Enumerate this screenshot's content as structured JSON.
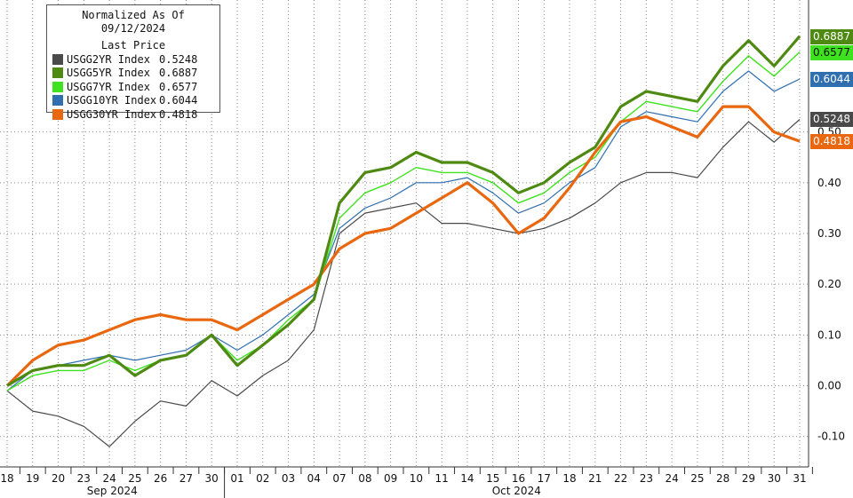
{
  "chart_data": {
    "type": "line",
    "legend": {
      "title": "Normalized As Of 09/12/2024",
      "subtitle": "Last Price",
      "placement": "top-left"
    },
    "ylim": [
      -0.16,
      0.76
    ],
    "yticks": [
      "-0.10",
      "0.00",
      "0.10",
      "0.20",
      "0.30",
      "0.40",
      "0.50"
    ],
    "ytick_values": [
      -0.1,
      0.0,
      0.1,
      0.2,
      0.3,
      0.4,
      0.5
    ],
    "x_day_labels": [
      "18",
      "19",
      "20",
      "23",
      "24",
      "25",
      "26",
      "27",
      "30",
      "01",
      "02",
      "03",
      "04",
      "07",
      "08",
      "09",
      "10",
      "11",
      "14",
      "15",
      "16",
      "17",
      "18",
      "21",
      "22",
      "23",
      "24",
      "25",
      "28",
      "29",
      "30",
      "31"
    ],
    "months": [
      {
        "label": "Sep 2024",
        "first_index": 0,
        "last_index": 8
      },
      {
        "label": "Oct 2024",
        "first_index": 9,
        "last_index": 31
      }
    ],
    "grid": true,
    "series": [
      {
        "name": "USGG2YR Index",
        "last": "0.5248",
        "last_value": 0.5248,
        "color": "#4a4a4a",
        "values": [
          -0.01,
          -0.05,
          -0.06,
          -0.08,
          -0.12,
          -0.07,
          -0.03,
          -0.04,
          0.01,
          -0.02,
          0.02,
          0.05,
          0.11,
          0.3,
          0.34,
          0.35,
          0.36,
          0.32,
          0.32,
          0.31,
          0.3,
          0.31,
          0.33,
          0.36,
          0.4,
          0.42,
          0.42,
          0.41,
          0.47,
          0.52,
          0.48,
          0.5248
        ]
      },
      {
        "name": "USGG5YR Index",
        "last": "0.6887",
        "last_value": 0.6887,
        "color": "#4e8a12",
        "values": [
          0.0,
          0.03,
          0.04,
          0.04,
          0.06,
          0.02,
          0.05,
          0.06,
          0.1,
          0.04,
          0.08,
          0.12,
          0.17,
          0.36,
          0.42,
          0.43,
          0.46,
          0.44,
          0.44,
          0.42,
          0.38,
          0.4,
          0.44,
          0.47,
          0.55,
          0.58,
          0.57,
          0.56,
          0.63,
          0.68,
          0.63,
          0.6887
        ]
      },
      {
        "name": "USGG7YR Index",
        "last": "0.6577",
        "last_value": 0.6577,
        "color": "#3ee21e",
        "values": [
          -0.01,
          0.02,
          0.03,
          0.03,
          0.05,
          0.03,
          0.05,
          0.06,
          0.1,
          0.05,
          0.08,
          0.13,
          0.17,
          0.33,
          0.38,
          0.4,
          0.43,
          0.42,
          0.42,
          0.4,
          0.36,
          0.38,
          0.42,
          0.45,
          0.52,
          0.56,
          0.55,
          0.54,
          0.6,
          0.65,
          0.61,
          0.6577
        ]
      },
      {
        "name": "USGG10YR Index",
        "last": "0.6044",
        "last_value": 0.6044,
        "color": "#2f6fb0",
        "values": [
          -0.01,
          0.03,
          0.04,
          0.05,
          0.06,
          0.05,
          0.06,
          0.07,
          0.1,
          0.07,
          0.1,
          0.14,
          0.18,
          0.31,
          0.35,
          0.37,
          0.4,
          0.4,
          0.41,
          0.38,
          0.34,
          0.36,
          0.4,
          0.43,
          0.51,
          0.54,
          0.53,
          0.52,
          0.58,
          0.62,
          0.58,
          0.6044
        ]
      },
      {
        "name": "USGG30YR Index",
        "last": "0.4818",
        "last_value": 0.4818,
        "color": "#e8670f",
        "values": [
          0.0,
          0.05,
          0.08,
          0.09,
          0.11,
          0.13,
          0.14,
          0.13,
          0.13,
          0.11,
          0.14,
          0.17,
          0.2,
          0.27,
          0.3,
          0.31,
          0.34,
          0.37,
          0.4,
          0.36,
          0.3,
          0.33,
          0.39,
          0.46,
          0.52,
          0.53,
          0.51,
          0.49,
          0.55,
          0.55,
          0.5,
          0.4818
        ]
      }
    ]
  }
}
